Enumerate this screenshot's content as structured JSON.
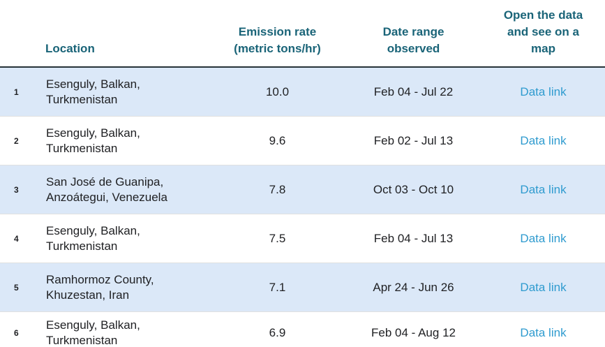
{
  "table": {
    "headers": {
      "index": "",
      "location": "Location",
      "emission": "Emission rate (metric tons/hr)",
      "dates": "Date range observed",
      "link": "Open the data and see on a map"
    },
    "rows": [
      {
        "index": "1",
        "location": "Esenguly, Balkan, Turkmenistan",
        "emission": "10.0",
        "dates": "Feb 04 - Jul 22",
        "link": "Data link"
      },
      {
        "index": "2",
        "location": "Esenguly, Balkan, Turkmenistan",
        "emission": "9.6",
        "dates": "Feb 02 - Jul 13",
        "link": "Data link"
      },
      {
        "index": "3",
        "location": "San José de Guanipa, Anzoátegui, Venezuela",
        "emission": "7.8",
        "dates": "Oct 03 - Oct 10",
        "link": "Data link"
      },
      {
        "index": "4",
        "location": "Esenguly, Balkan, Turkmenistan",
        "emission": "7.5",
        "dates": "Feb 04 - Jul 13",
        "link": "Data link"
      },
      {
        "index": "5",
        "location": "Ramhormoz County, Khuzestan, Iran",
        "emission": "7.1",
        "dates": "Apr 24 - Jun 26",
        "link": "Data link"
      },
      {
        "index": "6",
        "location": "Esenguly, Balkan, Turkmenistan",
        "emission": "6.9",
        "dates": "Feb 04 - Aug 12",
        "link": "Data link"
      }
    ]
  },
  "colors": {
    "header_text": "#1a6478",
    "header_border": "#263238",
    "row_alt_bg": "#dbe8f8",
    "row_border": "#e0e0e0",
    "link": "#2f9bcf",
    "body_text": "#202124"
  }
}
